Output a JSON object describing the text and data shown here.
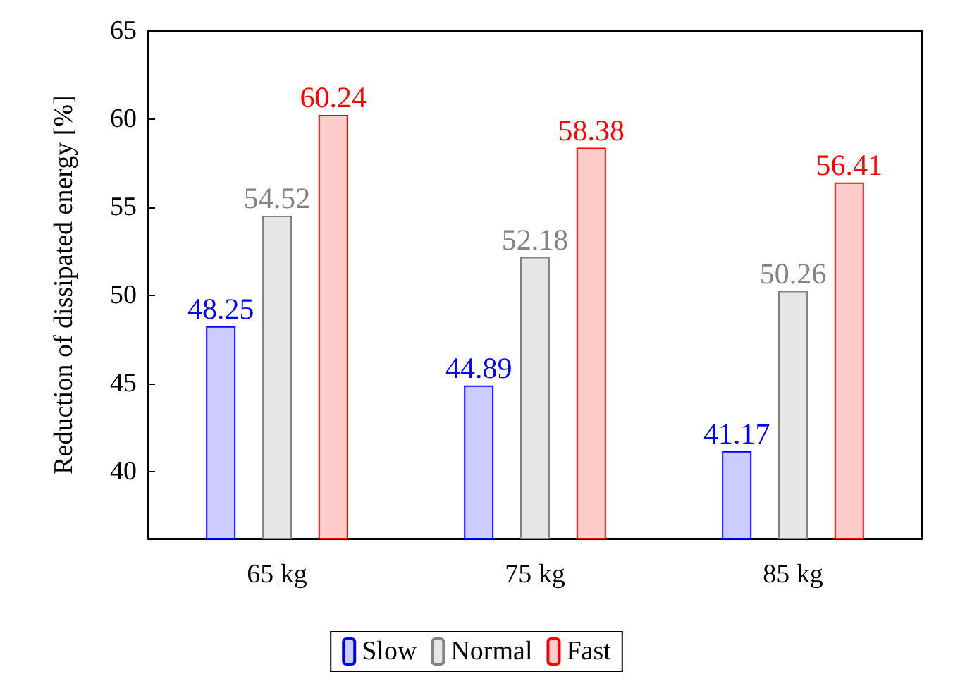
{
  "chart_data": {
    "type": "bar",
    "ylabel": "Reduction of dissipated energy [%]",
    "categories": [
      "65 kg",
      "75 kg",
      "85 kg"
    ],
    "series": [
      {
        "name": "Slow",
        "color": "#ccccff",
        "values": [
          48.25,
          44.89,
          41.17
        ]
      },
      {
        "name": "Normal",
        "color": "#e6e6e6",
        "values": [
          54.52,
          52.18,
          50.26
        ]
      },
      {
        "name": "Fast",
        "color": "#ffcccc",
        "values": [
          60.24,
          58.38,
          56.41
        ]
      }
    ],
    "ylim": [
      36.2,
      65
    ],
    "yticks": [
      40,
      45,
      50,
      55,
      60,
      65
    ],
    "data_labels": true,
    "grid": false,
    "legend": "bottom"
  }
}
